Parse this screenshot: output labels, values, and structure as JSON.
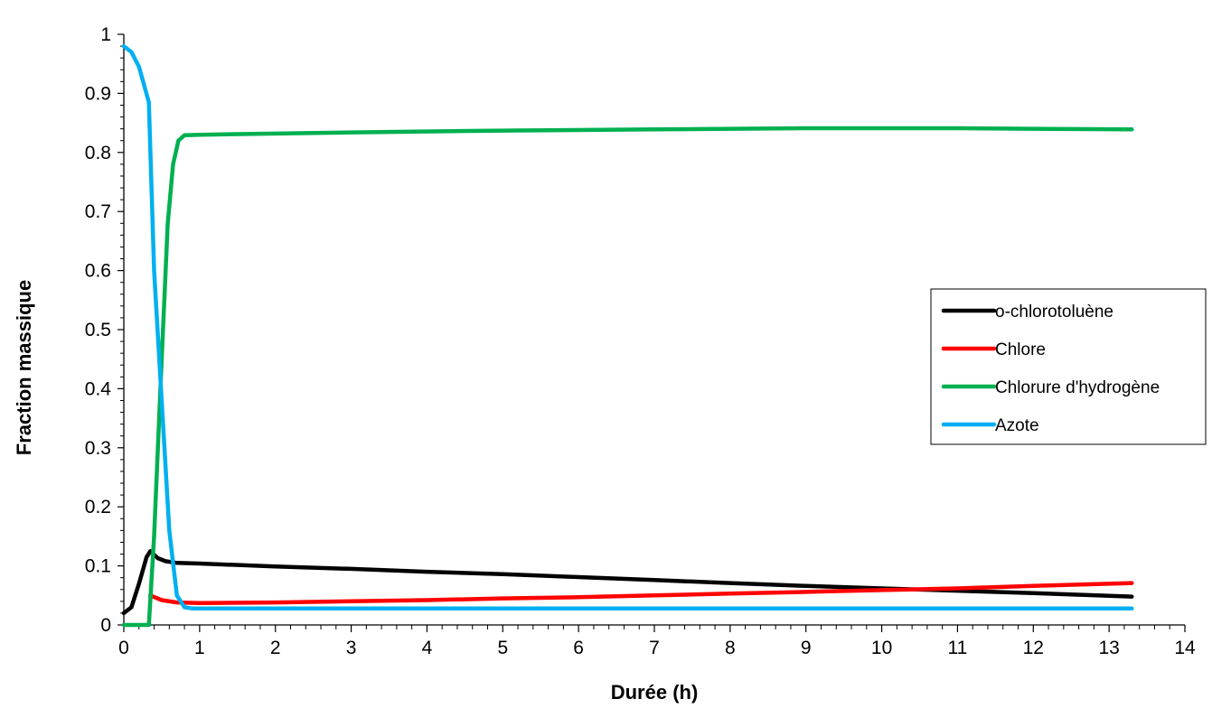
{
  "chart_data": {
    "type": "line",
    "title": "",
    "xlabel": "Durée (h)",
    "ylabel": "Fraction massique",
    "xlim": [
      0,
      14
    ],
    "ylim": [
      0,
      1
    ],
    "xticks": [
      0,
      1,
      2,
      3,
      4,
      5,
      6,
      7,
      8,
      9,
      10,
      11,
      12,
      13,
      14
    ],
    "yticks": [
      0,
      0.1,
      0.2,
      0.3,
      0.4,
      0.5,
      0.6,
      0.7,
      0.8,
      0.9,
      1
    ],
    "xtick_labels": [
      "0",
      "1",
      "2",
      "3",
      "4",
      "5",
      "6",
      "7",
      "8",
      "9",
      "10",
      "11",
      "12",
      "13",
      "14"
    ],
    "ytick_labels": [
      "0",
      "0.1",
      "0.2",
      "0.3",
      "0.4",
      "0.5",
      "0.6",
      "0.7",
      "0.8",
      "0.9",
      "1"
    ],
    "grid": false,
    "legend_position": "right",
    "series": [
      {
        "name": "o-chlorotoluène",
        "color": "#000000",
        "points": [
          [
            0,
            0.02
          ],
          [
            0.1,
            0.03
          ],
          [
            0.2,
            0.07
          ],
          [
            0.3,
            0.115
          ],
          [
            0.35,
            0.125
          ],
          [
            0.45,
            0.113
          ],
          [
            0.55,
            0.108
          ],
          [
            0.7,
            0.105
          ],
          [
            1,
            0.104
          ],
          [
            2,
            0.099
          ],
          [
            3,
            0.095
          ],
          [
            4,
            0.09
          ],
          [
            5,
            0.086
          ],
          [
            6,
            0.081
          ],
          [
            7,
            0.076
          ],
          [
            8,
            0.071
          ],
          [
            9,
            0.066
          ],
          [
            10,
            0.062
          ],
          [
            11,
            0.058
          ],
          [
            12,
            0.054
          ],
          [
            13.3,
            0.048
          ]
        ]
      },
      {
        "name": "Chlore",
        "color": "#ff0000",
        "points": [
          [
            0.35,
            0.05
          ],
          [
            0.5,
            0.042
          ],
          [
            0.7,
            0.038
          ],
          [
            1,
            0.037
          ],
          [
            2,
            0.038
          ],
          [
            3,
            0.04
          ],
          [
            4,
            0.042
          ],
          [
            5,
            0.045
          ],
          [
            6,
            0.047
          ],
          [
            7,
            0.05
          ],
          [
            8,
            0.053
          ],
          [
            9,
            0.056
          ],
          [
            10,
            0.059
          ],
          [
            11,
            0.062
          ],
          [
            12,
            0.066
          ],
          [
            13.3,
            0.071
          ]
        ]
      },
      {
        "name": "Chlorure d'hydrogène",
        "color": "#00b050",
        "points": [
          [
            0,
            0
          ],
          [
            0.33,
            0
          ],
          [
            0.4,
            0.15
          ],
          [
            0.5,
            0.45
          ],
          [
            0.58,
            0.68
          ],
          [
            0.65,
            0.78
          ],
          [
            0.72,
            0.82
          ],
          [
            0.8,
            0.829
          ],
          [
            1,
            0.83
          ],
          [
            3,
            0.834
          ],
          [
            5,
            0.837
          ],
          [
            7,
            0.839
          ],
          [
            9,
            0.841
          ],
          [
            11,
            0.841
          ],
          [
            13.3,
            0.839
          ]
        ]
      },
      {
        "name": "Azote",
        "color": "#00b0f0",
        "points": [
          [
            0,
            0.98
          ],
          [
            0.1,
            0.97
          ],
          [
            0.2,
            0.945
          ],
          [
            0.33,
            0.885
          ],
          [
            0.4,
            0.6
          ],
          [
            0.5,
            0.38
          ],
          [
            0.6,
            0.16
          ],
          [
            0.7,
            0.05
          ],
          [
            0.8,
            0.03
          ],
          [
            0.9,
            0.028
          ],
          [
            2,
            0.028
          ],
          [
            6,
            0.028
          ],
          [
            10,
            0.028
          ],
          [
            13.3,
            0.028
          ]
        ]
      }
    ]
  }
}
